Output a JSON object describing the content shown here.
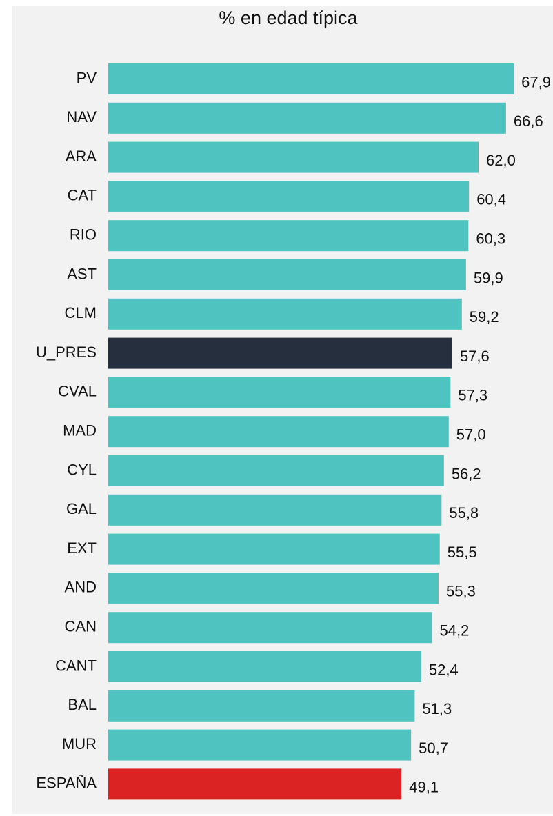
{
  "chart_data": {
    "type": "bar",
    "orientation": "horizontal",
    "title": "% en edad típica",
    "categories": [
      "PV",
      "NAV",
      "ARA",
      "CAT",
      "RIO",
      "AST",
      "CLM",
      "U_PRES",
      "CVAL",
      "MAD",
      "CYL",
      "GAL",
      "EXT",
      "AND",
      "CAN",
      "CANT",
      "BAL",
      "MUR",
      "ESPAÑA"
    ],
    "values": [
      67.9,
      66.6,
      62.0,
      60.4,
      60.3,
      59.9,
      59.2,
      57.6,
      57.3,
      57.0,
      56.2,
      55.8,
      55.5,
      55.3,
      54.2,
      52.4,
      51.3,
      50.7,
      49.1
    ],
    "value_labels": [
      "67,9",
      "66,6",
      "62,0",
      "60,4",
      "60,3",
      "59,9",
      "59,2",
      "57,6",
      "57,3",
      "57,0",
      "56,2",
      "55,8",
      "55,5",
      "55,3",
      "54,2",
      "52,4",
      "51,3",
      "50,7",
      "49,1"
    ],
    "colors": [
      "#4fc3bf",
      "#4fc3bf",
      "#4fc3bf",
      "#4fc3bf",
      "#4fc3bf",
      "#4fc3bf",
      "#4fc3bf",
      "#262f3e",
      "#4fc3bf",
      "#4fc3bf",
      "#4fc3bf",
      "#4fc3bf",
      "#4fc3bf",
      "#4fc3bf",
      "#4fc3bf",
      "#4fc3bf",
      "#4fc3bf",
      "#4fc3bf",
      "#dc2323"
    ],
    "xlim": [
      0,
      74
    ],
    "grid": false
  }
}
